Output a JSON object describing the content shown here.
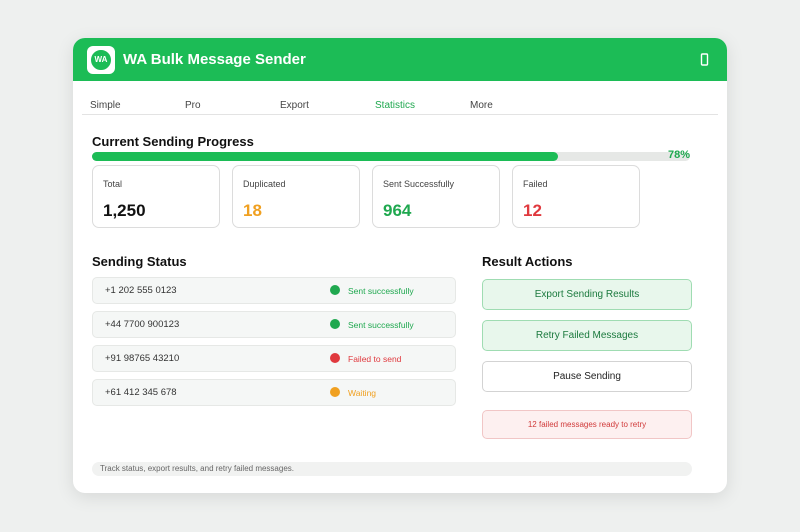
{
  "header": {
    "logo": "WA",
    "title": "WA Bulk Message Sender"
  },
  "tabs": [
    "Simple",
    "Pro",
    "Export",
    "Statistics",
    "More"
  ],
  "active_tab": 3,
  "progress": {
    "title": "Current Sending Progress",
    "value": 78,
    "label": "78%"
  },
  "stats": [
    {
      "label": "Total",
      "value": "1,250",
      "color": "#111111"
    },
    {
      "label": "Duplicated",
      "value": "18",
      "color": "#f0a020"
    },
    {
      "label": "Sent Successfully",
      "value": "964",
      "color": "#1fa84f"
    },
    {
      "label": "Failed",
      "value": "12",
      "color": "#e0393e"
    }
  ],
  "status": {
    "title": "Sending Status",
    "rows": [
      {
        "phone": "+1 202 555 0123",
        "status": "Sent successfully",
        "color": "#1fa84f"
      },
      {
        "phone": "+44 7700 900123",
        "status": "Sent successfully",
        "color": "#1fa84f"
      },
      {
        "phone": "+91 98765 43210",
        "status": "Failed to send",
        "color": "#e0393e"
      },
      {
        "phone": "+61 412 345 678",
        "status": "Waiting",
        "color": "#f0a020"
      }
    ]
  },
  "actions": {
    "title": "Result Actions",
    "buttons": [
      "Export Sending Results",
      "Retry Failed Messages",
      "Pause Sending"
    ],
    "notice": "12 failed messages ready to retry"
  },
  "footer": "Track status, export results, and retry failed messages."
}
